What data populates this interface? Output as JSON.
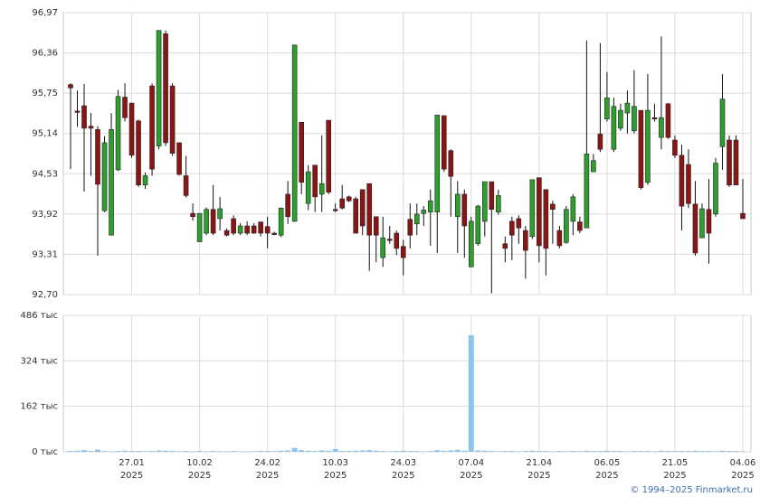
{
  "chart_data": [
    {
      "type": "candlestick",
      "up_color": "#2e9e2e",
      "down_color": "#8b1515",
      "ylim": [
        92.7,
        96.97
      ],
      "yticks": [
        {
          "value": 92.7,
          "label": "92,70"
        },
        {
          "value": 93.31,
          "label": "93,31"
        },
        {
          "value": 93.92,
          "label": "93,92"
        },
        {
          "value": 94.53,
          "label": "94,53"
        },
        {
          "value": 95.14,
          "label": "95,14"
        },
        {
          "value": 95.75,
          "label": "95,75"
        },
        {
          "value": 96.36,
          "label": "96,36"
        },
        {
          "value": 96.97,
          "label": "96,97"
        }
      ],
      "grid": true,
      "open": [
        95.88,
        95.48,
        95.56,
        95.25,
        95.2,
        93.97,
        93.6,
        94.59,
        95.69,
        95.6,
        95.33,
        94.36,
        95.86,
        94.95,
        96.65,
        95.86,
        95.0,
        94.5,
        93.93,
        93.5,
        93.63,
        93.99,
        93.85,
        93.67,
        93.85,
        93.63,
        93.74,
        93.74,
        93.8,
        93.73,
        93.63,
        93.6,
        94.22,
        93.81,
        95.31,
        94.08,
        94.66,
        94.22,
        95.34,
        93.99,
        94.15,
        94.18,
        94.15,
        94.29,
        94.38,
        93.88,
        93.26,
        93.54,
        93.63,
        93.43,
        93.84,
        93.77,
        93.93,
        93.95,
        93.95,
        95.41,
        94.88,
        93.88,
        94.22,
        93.12,
        93.47,
        93.81,
        94.41,
        93.95,
        93.47,
        93.81,
        93.85,
        93.67,
        93.58,
        94.47,
        94.29,
        94.07,
        93.67,
        93.49,
        93.81,
        93.8,
        93.71,
        94.56,
        95.13,
        95.36,
        94.9,
        95.22,
        95.45,
        95.18,
        95.49,
        94.4,
        95.38,
        95.08,
        95.59,
        95.04,
        94.81,
        94.67,
        94.07,
        93.56,
        93.99,
        93.92,
        94.94,
        95.04,
        95.04,
        93.93
      ],
      "high": [
        95.9,
        95.79,
        95.89,
        95.45,
        95.25,
        95.1,
        95.45,
        95.8,
        95.9,
        95.6,
        95.35,
        94.55,
        95.9,
        96.7,
        96.7,
        95.9,
        95.0,
        94.8,
        94.08,
        93.93,
        94.02,
        94.36,
        94.18,
        93.7,
        93.9,
        93.78,
        93.81,
        93.78,
        93.8,
        93.88,
        93.65,
        94.02,
        94.42,
        96.48,
        95.31,
        94.66,
        94.66,
        95.11,
        95.34,
        94.08,
        94.36,
        94.2,
        94.18,
        94.29,
        94.38,
        93.88,
        93.88,
        93.74,
        93.67,
        93.53,
        94.08,
        94.08,
        94.04,
        94.29,
        95.42,
        95.41,
        94.9,
        94.42,
        94.29,
        93.88,
        94.06,
        94.41,
        94.41,
        94.29,
        93.58,
        93.88,
        93.9,
        93.74,
        94.44,
        94.47,
        94.29,
        94.12,
        93.74,
        94.04,
        94.22,
        93.88,
        96.55,
        94.83,
        96.51,
        96.07,
        95.68,
        95.59,
        95.79,
        96.1,
        95.49,
        96.04,
        95.59,
        96.61,
        95.6,
        95.11,
        94.97,
        94.9,
        94.42,
        94.08,
        94.45,
        94.77,
        96.04,
        95.11,
        95.11,
        94.45
      ],
      "low": [
        94.6,
        95.24,
        94.26,
        94.5,
        93.29,
        93.95,
        93.6,
        94.57,
        95.32,
        94.77,
        94.33,
        94.3,
        94.5,
        94.9,
        94.95,
        94.8,
        94.5,
        94.17,
        93.82,
        93.5,
        93.6,
        93.6,
        93.67,
        93.58,
        93.6,
        93.6,
        93.6,
        93.62,
        93.58,
        93.4,
        93.6,
        93.57,
        93.77,
        93.8,
        94.22,
        93.98,
        93.95,
        93.95,
        94.22,
        93.95,
        93.99,
        94.1,
        93.63,
        93.6,
        93.06,
        93.19,
        93.12,
        93.47,
        93.3,
        92.99,
        93.4,
        93.6,
        93.74,
        93.44,
        93.33,
        94.56,
        93.88,
        93.33,
        93.26,
        93.12,
        93.44,
        93.58,
        92.72,
        93.91,
        93.19,
        93.22,
        93.47,
        92.94,
        93.54,
        93.19,
        92.99,
        93.47,
        93.4,
        93.47,
        93.6,
        93.63,
        93.71,
        94.56,
        94.86,
        95.32,
        94.86,
        95.18,
        95.14,
        95.14,
        94.29,
        94.36,
        95.32,
        94.9,
        95.06,
        94.77,
        93.67,
        94.01,
        93.29,
        93.56,
        93.17,
        93.88,
        94.59,
        94.33,
        94.36,
        93.85
      ],
      "close": [
        95.83,
        95.46,
        95.22,
        95.22,
        94.37,
        95.0,
        95.2,
        95.7,
        95.38,
        94.81,
        94.36,
        94.5,
        94.6,
        96.7,
        95.0,
        94.84,
        94.52,
        94.2,
        93.88,
        93.93,
        93.99,
        93.63,
        94.0,
        93.6,
        93.63,
        93.74,
        93.63,
        93.63,
        93.63,
        93.63,
        93.62,
        94.01,
        93.88,
        96.48,
        94.4,
        94.56,
        94.18,
        94.38,
        94.25,
        93.97,
        94.01,
        94.12,
        93.63,
        93.74,
        93.6,
        93.6,
        93.56,
        93.53,
        93.4,
        93.26,
        93.6,
        93.92,
        93.98,
        94.12,
        95.42,
        94.6,
        94.49,
        94.22,
        93.74,
        93.81,
        94.04,
        94.41,
        93.99,
        94.2,
        93.4,
        93.6,
        93.71,
        93.37,
        94.44,
        93.44,
        93.4,
        93.99,
        93.44,
        93.99,
        94.18,
        93.67,
        94.83,
        94.73,
        94.9,
        95.68,
        95.55,
        95.49,
        95.6,
        95.55,
        94.32,
        95.49,
        95.37,
        95.38,
        95.08,
        94.81,
        94.04,
        94.08,
        93.33,
        94.0,
        93.63,
        94.69,
        95.66,
        94.36,
        94.36,
        93.85
      ]
    },
    {
      "type": "bar",
      "color": "#8ec3ea",
      "ylim": [
        0,
        486000
      ],
      "yticks": [
        {
          "value": 0,
          "label": "0 тыс"
        },
        {
          "value": 162000,
          "label": "162 тыс"
        },
        {
          "value": 324000,
          "label": "324 тыс"
        },
        {
          "value": 486000,
          "label": "486 тыс"
        }
      ],
      "grid": true,
      "year_label": "2025",
      "categories": [
        null,
        null,
        null,
        null,
        null,
        null,
        null,
        null,
        null,
        "27.01",
        null,
        null,
        null,
        null,
        null,
        null,
        null,
        null,
        null,
        "10.02",
        null,
        null,
        null,
        null,
        null,
        null,
        null,
        null,
        null,
        "24.02",
        null,
        null,
        null,
        null,
        null,
        null,
        null,
        null,
        null,
        "10.03",
        null,
        null,
        null,
        null,
        null,
        null,
        null,
        null,
        null,
        "24.03",
        null,
        null,
        null,
        null,
        null,
        null,
        null,
        null,
        null,
        "07.04",
        null,
        null,
        null,
        null,
        null,
        null,
        null,
        null,
        null,
        "21.04",
        null,
        null,
        null,
        null,
        null,
        null,
        null,
        null,
        null,
        "06.05",
        null,
        null,
        null,
        null,
        null,
        null,
        null,
        null,
        null,
        "21.05",
        null,
        null,
        null,
        null,
        null,
        null,
        null,
        null,
        null,
        "04.06"
      ],
      "values": [
        3000,
        4000,
        6000,
        3000,
        8000,
        3000,
        2000,
        3000,
        4000,
        3000,
        3000,
        2000,
        3000,
        5000,
        4000,
        3000,
        2000,
        3000,
        2000,
        3000,
        2000,
        3000,
        2000,
        2000,
        3000,
        2000,
        2000,
        2000,
        3000,
        3000,
        2000,
        4000,
        5000,
        14000,
        6000,
        4000,
        3000,
        5000,
        4000,
        10000,
        3000,
        3000,
        4000,
        5000,
        6000,
        4000,
        3000,
        2000,
        3000,
        4000,
        3000,
        3000,
        2000,
        3000,
        6000,
        4000,
        5000,
        7000,
        4000,
        415000,
        5000,
        4000,
        3000,
        2000,
        3000,
        3000,
        2000,
        3000,
        4000,
        3000,
        3000,
        2000,
        3000,
        2000,
        3000,
        2000,
        4000,
        3000,
        3000,
        4000,
        3000,
        3000,
        2000,
        3000,
        3000,
        3000,
        2000,
        4000,
        3000,
        3000,
        3000,
        3000,
        4000,
        3000,
        3000,
        2000,
        4000,
        3000,
        3000,
        2000
      ]
    }
  ],
  "footer": "© 1994–2025 Finmarket.ru"
}
